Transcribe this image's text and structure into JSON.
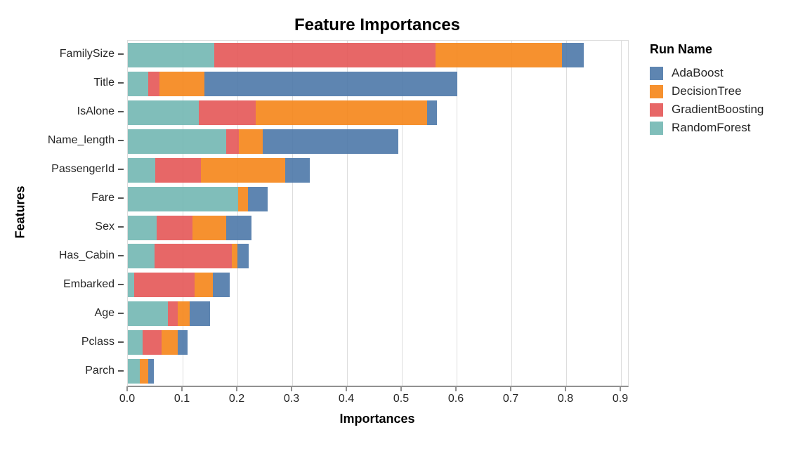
{
  "chart_data": {
    "type": "bar",
    "orientation": "horizontal",
    "stacked": true,
    "title": "Feature Importances",
    "xlabel": "Importances",
    "ylabel": "Features",
    "legend_title": "Run Name",
    "legend_position": "right",
    "grid": true,
    "xlim": [
      0,
      0.913
    ],
    "xtick_values": [
      0.0,
      0.1,
      0.2,
      0.3,
      0.4,
      0.5,
      0.6,
      0.7,
      0.8,
      0.9
    ],
    "xtick_labels": [
      "0.0",
      "0.1",
      "0.2",
      "0.3",
      "0.4",
      "0.5",
      "0.6",
      "0.7",
      "0.8",
      "0.9"
    ],
    "bar_opacity": 0.9,
    "categories": [
      "FamilySize",
      "Title",
      "IsAlone",
      "Name_length",
      "PassengerId",
      "Fare",
      "Sex",
      "Has_Cabin",
      "Embarked",
      "Age",
      "Pclass",
      "Parch"
    ],
    "stack_order_left_to_right": [
      "RandomForest",
      "GradientBoosting",
      "DecisionTree",
      "AdaBoost"
    ],
    "series": [
      {
        "name": "AdaBoost",
        "color": "#4c78a8",
        "values": [
          0.04,
          0.461,
          0.018,
          0.248,
          0.045,
          0.036,
          0.047,
          0.021,
          0.031,
          0.037,
          0.018,
          0.01
        ]
      },
      {
        "name": "DecisionTree",
        "color": "#f58518",
        "values": [
          0.231,
          0.082,
          0.313,
          0.043,
          0.154,
          0.018,
          0.061,
          0.01,
          0.033,
          0.022,
          0.029,
          0.015
        ]
      },
      {
        "name": "GradientBoosting",
        "color": "#e45756",
        "values": [
          0.403,
          0.021,
          0.103,
          0.024,
          0.083,
          0.0,
          0.065,
          0.141,
          0.11,
          0.018,
          0.035,
          0.0
        ]
      },
      {
        "name": "RandomForest",
        "color": "#72b7b2",
        "values": [
          0.158,
          0.037,
          0.13,
          0.179,
          0.05,
          0.201,
          0.053,
          0.049,
          0.012,
          0.073,
          0.027,
          0.022
        ]
      }
    ]
  }
}
